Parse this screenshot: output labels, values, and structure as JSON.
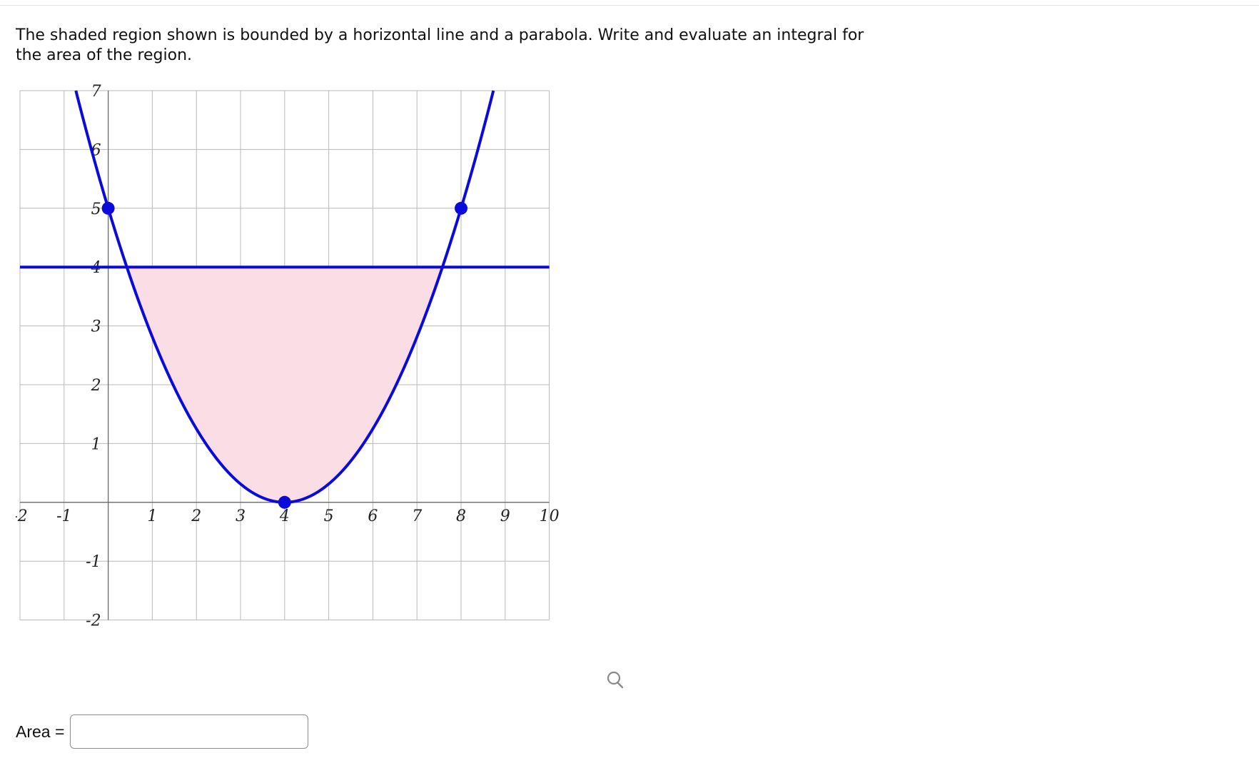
{
  "question": {
    "prompt": "The shaded region shown is bounded by a horizontal line and a parabola. Write and evaluate an integral for the area of the region."
  },
  "graph": {
    "x_range": [
      -2,
      10
    ],
    "y_range": [
      -2,
      7
    ],
    "x_ticks": [
      -2,
      -1,
      1,
      2,
      3,
      4,
      5,
      6,
      7,
      8,
      9,
      10
    ],
    "y_ticks": [
      -2,
      -1,
      1,
      2,
      3,
      4,
      5,
      6,
      7
    ],
    "x_tick_labels": [
      "-2",
      "-1",
      "1",
      "2",
      "3",
      "4",
      "5",
      "6",
      "7",
      "8",
      "9",
      "10"
    ],
    "y_tick_labels": [
      "-2",
      "-1",
      "1",
      "2",
      "3",
      "4",
      "5",
      "6",
      "7"
    ],
    "parabola": {
      "vertex": [
        4,
        0
      ],
      "points": [
        [
          0,
          5
        ],
        [
          8,
          5
        ]
      ]
    },
    "horizontal_line_y": 4,
    "curve_color": "#0a0adb",
    "shade_color": "#fbdde5",
    "grid_color": "#b9b9b9",
    "zoom_icon": "magnifier-icon"
  },
  "answer": {
    "label": "Area =",
    "value": "",
    "placeholder": ""
  }
}
